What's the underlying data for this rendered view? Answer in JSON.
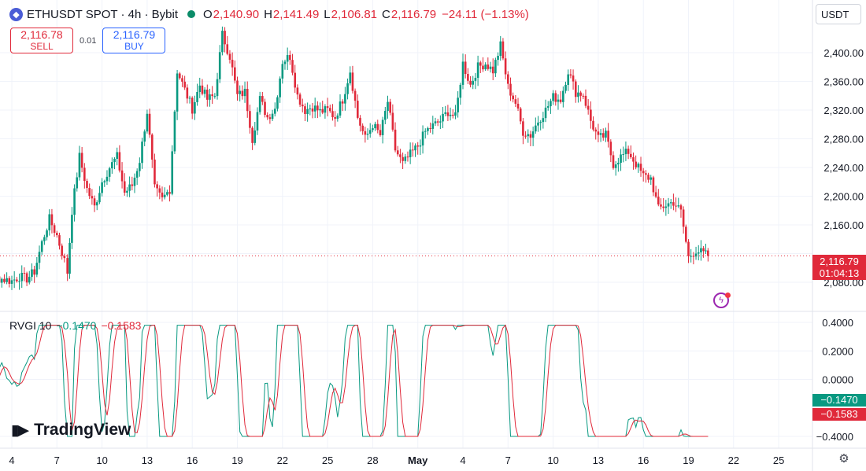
{
  "header": {
    "symbol": "ETHUSDT SPOT · 4h · Bybit",
    "logo_icon": "ethereum-icon",
    "open_label": "O",
    "open": "2,140.90",
    "high_label": "H",
    "high": "2,141.49",
    "low_label": "L",
    "low": "2,106.81",
    "close_label": "C",
    "close": "2,116.79",
    "change": "−24.11 (−1.13%)"
  },
  "order_panel": {
    "sell_price": "2,116.78",
    "sell_label": "SELL",
    "spread": "0.01",
    "buy_price": "2,116.79",
    "buy_label": "BUY"
  },
  "currency_button": "USDT",
  "price_label": {
    "price": "2,116.79",
    "countdown": "01:04:13"
  },
  "indicator": {
    "name": "RVGI 10",
    "value1": "−0.1470",
    "value2": "−0.1583",
    "label1": "−0.1470",
    "label2": "−0.1583"
  },
  "branding": "TradingView",
  "colors": {
    "up": "#089981",
    "down": "#e0293a",
    "rvgi": "#089981",
    "signal": "#e0293a"
  },
  "chart_data": {
    "type": "candlestick",
    "timeframe": "4h",
    "last_close": 2116.79,
    "price_axis": {
      "ticks": [
        "2,400.00",
        "2,360.00",
        "2,320.00",
        "2,280.00",
        "2,240.00",
        "2,200.00",
        "2,160.00",
        "2,080.00"
      ],
      "values": [
        2400,
        2360,
        2320,
        2280,
        2240,
        2200,
        2160,
        2080
      ]
    },
    "indicator_axis": {
      "ticks": [
        "0.4000",
        "0.2000",
        "0.0000",
        "−0.4000"
      ],
      "values": [
        0.4,
        0.2,
        0.0,
        -0.4
      ]
    },
    "x_axis": {
      "ticks": [
        "4",
        "7",
        "10",
        "13",
        "16",
        "19",
        "22",
        "25",
        "28",
        "May",
        "4",
        "7",
        "10",
        "13",
        "16",
        "19",
        "22",
        "25"
      ],
      "days": [
        4,
        7,
        10,
        13,
        16,
        19,
        22,
        25,
        28,
        31,
        34,
        37,
        40,
        43,
        46,
        49,
        52,
        55
      ]
    },
    "candles_close_by_day": [
      [
        1.0,
        2090
      ],
      [
        1.5,
        2082
      ],
      [
        2.0,
        2080
      ],
      [
        2.5,
        2083
      ],
      [
        3.0,
        2086
      ],
      [
        3.5,
        2084
      ],
      [
        4.0,
        2082
      ],
      [
        4.5,
        2088
      ],
      [
        5.0,
        2085
      ],
      [
        5.5,
        2095
      ],
      [
        6.0,
        2135
      ],
      [
        6.5,
        2168
      ],
      [
        7.0,
        2145
      ],
      [
        7.5,
        2110
      ],
      [
        7.7,
        2094
      ],
      [
        8.0,
        2180
      ],
      [
        8.5,
        2255
      ],
      [
        9.0,
        2210
      ],
      [
        9.5,
        2185
      ],
      [
        10.0,
        2220
      ],
      [
        10.5,
        2240
      ],
      [
        11.0,
        2255
      ],
      [
        11.5,
        2205
      ],
      [
        12.0,
        2215
      ],
      [
        12.5,
        2250
      ],
      [
        13.0,
        2318
      ],
      [
        13.5,
        2210
      ],
      [
        14.0,
        2195
      ],
      [
        14.5,
        2210
      ],
      [
        15.0,
        2375
      ],
      [
        15.5,
        2348
      ],
      [
        16.0,
        2322
      ],
      [
        16.5,
        2355
      ],
      [
        17.0,
        2335
      ],
      [
        17.5,
        2340
      ],
      [
        18.0,
        2425
      ],
      [
        18.5,
        2395
      ],
      [
        19.0,
        2340
      ],
      [
        19.5,
        2345
      ],
      [
        20.0,
        2280
      ],
      [
        20.5,
        2335
      ],
      [
        21.0,
        2310
      ],
      [
        21.5,
        2322
      ],
      [
        22.0,
        2388
      ],
      [
        22.5,
        2395
      ],
      [
        23.0,
        2340
      ],
      [
        23.5,
        2320
      ],
      [
        24.0,
        2325
      ],
      [
        24.5,
        2318
      ],
      [
        25.0,
        2320
      ],
      [
        25.5,
        2310
      ],
      [
        26.0,
        2335
      ],
      [
        26.5,
        2375
      ],
      [
        27.0,
        2310
      ],
      [
        27.5,
        2280
      ],
      [
        28.0,
        2300
      ],
      [
        28.5,
        2285
      ],
      [
        29.0,
        2332
      ],
      [
        29.5,
        2265
      ],
      [
        30.0,
        2245
      ],
      [
        30.5,
        2258
      ],
      [
        31.0,
        2270
      ],
      [
        31.5,
        2290
      ],
      [
        32.0,
        2298
      ],
      [
        32.5,
        2305
      ],
      [
        33.0,
        2318
      ],
      [
        33.5,
        2310
      ],
      [
        34.0,
        2385
      ],
      [
        34.5,
        2355
      ],
      [
        35.0,
        2380
      ],
      [
        35.5,
        2385
      ],
      [
        36.0,
        2375
      ],
      [
        36.5,
        2410
      ],
      [
        37.0,
        2352
      ],
      [
        37.5,
        2330
      ],
      [
        38.0,
        2290
      ],
      [
        38.5,
        2285
      ],
      [
        39.0,
        2305
      ],
      [
        39.5,
        2320
      ],
      [
        40.0,
        2338
      ],
      [
        40.5,
        2335
      ],
      [
        41.0,
        2375
      ],
      [
        41.5,
        2345
      ],
      [
        42.0,
        2342
      ],
      [
        42.5,
        2305
      ],
      [
        43.0,
        2280
      ],
      [
        43.5,
        2285
      ],
      [
        44.0,
        2245
      ],
      [
        44.5,
        2255
      ],
      [
        45.0,
        2262
      ],
      [
        45.5,
        2245
      ],
      [
        46.0,
        2228
      ],
      [
        46.5,
        2225
      ],
      [
        47.0,
        2182
      ],
      [
        47.5,
        2188
      ],
      [
        48.0,
        2192
      ],
      [
        48.5,
        2178
      ],
      [
        49.0,
        2115
      ],
      [
        49.5,
        2125
      ],
      [
        50.0,
        2120
      ],
      [
        50.3,
        2116.79
      ]
    ]
  }
}
